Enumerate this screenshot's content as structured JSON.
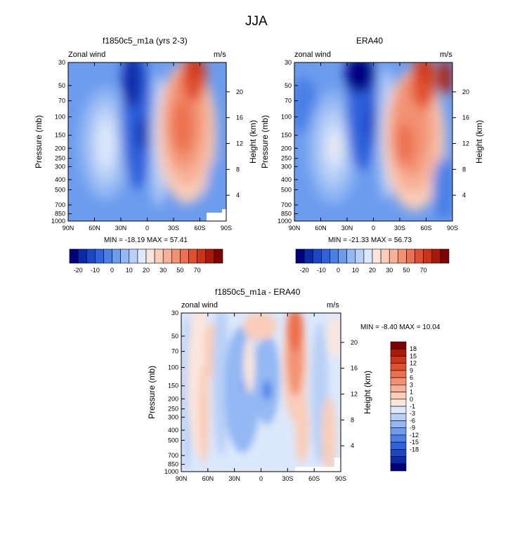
{
  "figure": {
    "title": "JJA",
    "colors": {
      "blue_scale": [
        "#00007f",
        "#0a2aa8",
        "#1b46c6",
        "#2f62dc",
        "#4a80e6",
        "#6c9cee",
        "#93b8f3",
        "#b9d0f6",
        "#dce8fb"
      ],
      "red_scale": [
        "#fbe6dd",
        "#f9cdb9",
        "#f6b196",
        "#f29272",
        "#ec7150",
        "#e04f2f",
        "#cc3317",
        "#aa1b07",
        "#7f0000"
      ]
    }
  },
  "chart_data": [
    {
      "type": "heatmap",
      "id": "model",
      "title": "f1850c5_m1a (yrs 2-3)",
      "left_label": "Zonal wind",
      "right_label": "m/s",
      "xlabel": "",
      "ylabel": "Pressure (mb)",
      "y2label": "Height (km)",
      "x_ticks": [
        "90N",
        "60N",
        "30N",
        "0",
        "30S",
        "60S",
        "90S"
      ],
      "y_ticks": [
        "30",
        "50",
        "70",
        "100",
        "150",
        "200",
        "250",
        "300",
        "400",
        "500",
        "700",
        "850",
        "1000"
      ],
      "y2_ticks": [
        "20",
        "16",
        "12",
        "8",
        "4"
      ],
      "stats": "MIN = -18.19  MAX = 57.41",
      "features": [
        {
          "lat": 45,
          "p": 250,
          "value": 16
        },
        {
          "lat": 5,
          "p": 150,
          "value": -18
        },
        {
          "lat": 20,
          "p": 70,
          "value": -16
        },
        {
          "lat": -40,
          "p": 200,
          "value": 36
        },
        {
          "lat": -50,
          "p": 60,
          "value": 57
        },
        {
          "lat": -75,
          "p": 500,
          "value": 18
        }
      ],
      "colorbar": {
        "labels": [
          "-20",
          "-10",
          "0",
          "10",
          "20",
          "30",
          "50",
          "70"
        ]
      }
    },
    {
      "type": "heatmap",
      "id": "reanalysis",
      "title": "ERA40",
      "left_label": "zonal wind",
      "right_label": "m/s",
      "xlabel": "",
      "ylabel": "Pressure (mb)",
      "y2label": "Height (km)",
      "x_ticks": [
        "90N",
        "60N",
        "30N",
        "0",
        "30S",
        "60S",
        "90S"
      ],
      "y_ticks": [
        "30",
        "50",
        "70",
        "100",
        "150",
        "200",
        "250",
        "300",
        "400",
        "500",
        "700",
        "850",
        "1000"
      ],
      "y2_ticks": [
        "20",
        "16",
        "12",
        "8",
        "4"
      ],
      "stats": "MIN = -21.33  MAX =  56.73",
      "features": [
        {
          "lat": 45,
          "p": 200,
          "value": 20
        },
        {
          "lat": 10,
          "p": 50,
          "value": -21
        },
        {
          "lat": 20,
          "p": 150,
          "value": -14
        },
        {
          "lat": -40,
          "p": 200,
          "value": 40
        },
        {
          "lat": -60,
          "p": 60,
          "value": 56
        },
        {
          "lat": -75,
          "p": 500,
          "value": 20
        }
      ],
      "colorbar": {
        "labels": [
          "-20",
          "-10",
          "0",
          "10",
          "20",
          "30",
          "50",
          "70"
        ]
      }
    },
    {
      "type": "heatmap",
      "id": "difference",
      "title": "f1850c5_m1a - ERA40",
      "left_label": "zonal wind",
      "right_label": "m/s",
      "xlabel": "",
      "ylabel": "Pressure (mb)",
      "y2label": "Height (km)",
      "x_ticks": [
        "90N",
        "60N",
        "30N",
        "0",
        "30S",
        "60S",
        "90S"
      ],
      "y_ticks": [
        "30",
        "50",
        "70",
        "100",
        "150",
        "200",
        "250",
        "300",
        "400",
        "500",
        "700",
        "850",
        "1000"
      ],
      "y2_ticks": [
        "20",
        "16",
        "12",
        "8",
        "4"
      ],
      "stats": "MIN =  -8.40  MAX =  10.04",
      "features": [
        {
          "lat": -40,
          "p": 70,
          "value": 10
        },
        {
          "lat": 0,
          "p": 40,
          "value": 6
        },
        {
          "lat": 15,
          "p": 150,
          "value": -5
        },
        {
          "lat": -5,
          "p": 150,
          "value": -8
        },
        {
          "lat": 45,
          "p": 300,
          "value": 3
        },
        {
          "lat": -85,
          "p": 500,
          "value": 4
        }
      ],
      "colorbar": {
        "labels": [
          "18",
          "15",
          "12",
          "9",
          "6",
          "3",
          "1",
          "0",
          "-1",
          "-3",
          "-6",
          "-9",
          "-12",
          "-15",
          "-18"
        ]
      }
    }
  ]
}
